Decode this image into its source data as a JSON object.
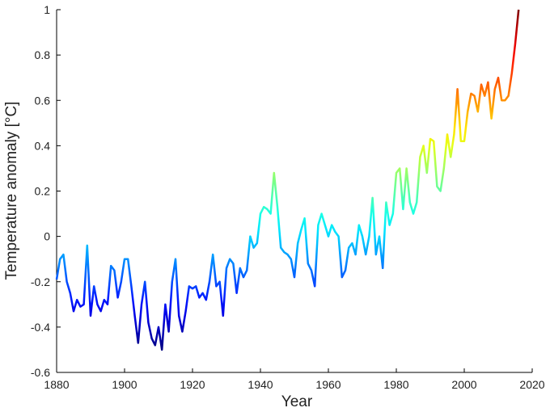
{
  "chart_data": {
    "type": "line",
    "x_label": "Year",
    "y_label": "Temperature anomaly [°C]",
    "colormap": "jet",
    "xlim": [
      1880,
      2020
    ],
    "xticks": [
      1880,
      1900,
      1920,
      1940,
      1960,
      1980,
      2000,
      2020
    ],
    "ylim": [
      -0.6,
      1
    ],
    "yticks": [
      -0.6,
      -0.4,
      -0.2,
      0,
      0.2,
      0.4,
      0.6,
      0.8,
      1
    ],
    "x": [
      1880,
      1881,
      1882,
      1883,
      1884,
      1885,
      1886,
      1887,
      1888,
      1889,
      1890,
      1891,
      1892,
      1893,
      1894,
      1895,
      1896,
      1897,
      1898,
      1899,
      1900,
      1901,
      1902,
      1903,
      1904,
      1905,
      1906,
      1907,
      1908,
      1909,
      1910,
      1911,
      1912,
      1913,
      1914,
      1915,
      1916,
      1917,
      1918,
      1919,
      1920,
      1921,
      1922,
      1923,
      1924,
      1925,
      1926,
      1927,
      1928,
      1929,
      1930,
      1931,
      1932,
      1933,
      1934,
      1935,
      1936,
      1937,
      1938,
      1939,
      1940,
      1941,
      1942,
      1943,
      1944,
      1945,
      1946,
      1947,
      1948,
      1949,
      1950,
      1951,
      1952,
      1953,
      1954,
      1955,
      1956,
      1957,
      1958,
      1959,
      1960,
      1961,
      1962,
      1963,
      1964,
      1965,
      1966,
      1967,
      1968,
      1969,
      1970,
      1971,
      1972,
      1973,
      1974,
      1975,
      1976,
      1977,
      1978,
      1979,
      1980,
      1981,
      1982,
      1983,
      1984,
      1985,
      1986,
      1987,
      1988,
      1989,
      1990,
      1991,
      1992,
      1993,
      1994,
      1995,
      1996,
      1997,
      1998,
      1999,
      2000,
      2001,
      2002,
      2003,
      2004,
      2005,
      2006,
      2007,
      2008,
      2009,
      2010,
      2011,
      2012,
      2013,
      2014,
      2015,
      2016
    ],
    "values": [
      -0.19,
      -0.1,
      -0.08,
      -0.2,
      -0.25,
      -0.33,
      -0.28,
      -0.31,
      -0.3,
      -0.04,
      -0.35,
      -0.22,
      -0.3,
      -0.33,
      -0.28,
      -0.3,
      -0.13,
      -0.15,
      -0.27,
      -0.2,
      -0.1,
      -0.1,
      -0.22,
      -0.35,
      -0.47,
      -0.3,
      -0.2,
      -0.38,
      -0.45,
      -0.48,
      -0.4,
      -0.5,
      -0.3,
      -0.42,
      -0.2,
      -0.1,
      -0.35,
      -0.42,
      -0.33,
      -0.22,
      -0.23,
      -0.22,
      -0.27,
      -0.25,
      -0.28,
      -0.2,
      -0.08,
      -0.22,
      -0.2,
      -0.35,
      -0.14,
      -0.1,
      -0.12,
      -0.25,
      -0.14,
      -0.18,
      -0.15,
      0.0,
      -0.05,
      -0.03,
      0.1,
      0.13,
      0.12,
      0.1,
      0.28,
      0.13,
      -0.05,
      -0.07,
      -0.08,
      -0.1,
      -0.18,
      -0.03,
      0.03,
      0.08,
      -0.12,
      -0.15,
      -0.22,
      0.05,
      0.1,
      0.05,
      0.0,
      0.05,
      0.02,
      0.0,
      -0.18,
      -0.15,
      -0.05,
      -0.03,
      -0.08,
      0.05,
      0.0,
      -0.08,
      0.0,
      0.17,
      -0.08,
      0.0,
      -0.14,
      0.15,
      0.05,
      0.1,
      0.28,
      0.3,
      0.12,
      0.3,
      0.15,
      0.1,
      0.15,
      0.35,
      0.4,
      0.28,
      0.43,
      0.42,
      0.22,
      0.2,
      0.3,
      0.45,
      0.35,
      0.45,
      0.65,
      0.42,
      0.42,
      0.55,
      0.63,
      0.62,
      0.55,
      0.67,
      0.62,
      0.68,
      0.52,
      0.65,
      0.7,
      0.6,
      0.6,
      0.62,
      0.72,
      0.85,
      1.0
    ]
  }
}
